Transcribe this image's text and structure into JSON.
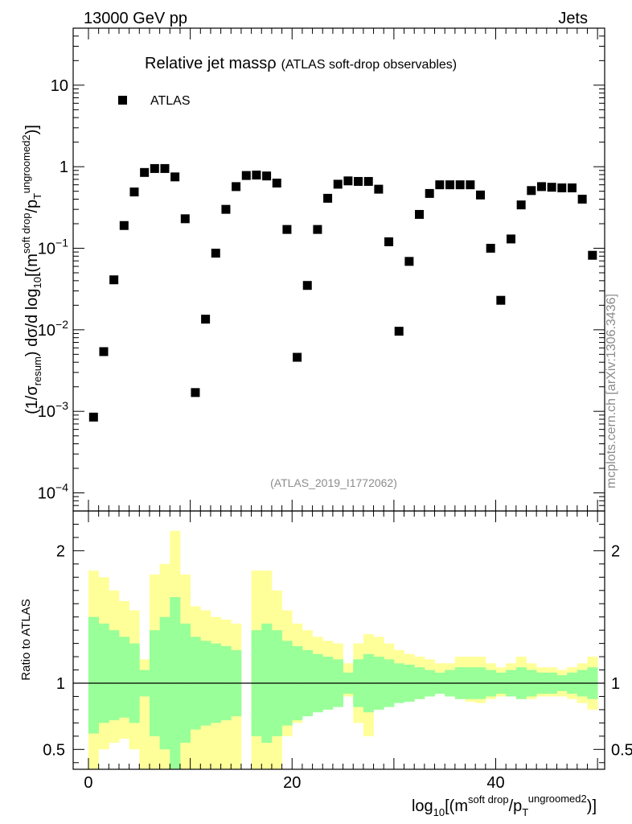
{
  "header": {
    "left": "13000 GeV pp",
    "right": "Jets",
    "watermark": "mcplots.cern.ch [arXiv:1306.3436]",
    "analysis": "(ATLAS_2019_I1772062)"
  },
  "chart_data": [
    {
      "type": "scatter",
      "title_main": "Relative jet mass",
      "title_rho": "ρ",
      "title_sub": "(ATLAS soft-drop observables)",
      "ylabel": {
        "p1": "(1/σ",
        "s1": "resum",
        "p2": ") dσ/d log",
        "s2": "10",
        "p3": "[(m",
        "s3": "soft drop",
        "p4": "/p",
        "s4": "T",
        "s5": "ungroomed",
        "s6": "2",
        "p5": ")",
        "p6": "]"
      },
      "yscale": "log",
      "ylim": [
        6e-05,
        50
      ],
      "yticks": [
        {
          "v": 0.0001,
          "m": "10",
          "e": "−4"
        },
        {
          "v": 0.001,
          "m": "10",
          "e": "−3"
        },
        {
          "v": 0.01,
          "m": "10",
          "e": "−2"
        },
        {
          "v": 0.1,
          "m": "10",
          "e": "−1"
        },
        {
          "v": 1,
          "m": "1",
          "e": ""
        },
        {
          "v": 10,
          "m": "10",
          "e": ""
        }
      ],
      "xlim": [
        -1.5,
        50.7
      ],
      "legend": {
        "label": "ATLAS",
        "position": "top-left"
      },
      "series": [
        {
          "name": "ATLAS",
          "x": [
            0.5,
            1.5,
            2.5,
            3.5,
            4.5,
            5.5,
            6.5,
            7.5,
            8.5,
            9.5,
            10.5,
            11.5,
            12.5,
            13.5,
            14.5,
            15.5,
            16.5,
            17.5,
            18.5,
            19.5,
            20.5,
            21.5,
            22.5,
            23.5,
            24.5,
            25.5,
            26.5,
            27.5,
            28.5,
            29.5,
            30.5,
            31.5,
            32.5,
            33.5,
            34.5,
            35.5,
            36.5,
            37.5,
            38.5,
            39.5,
            40.5,
            41.5,
            42.5,
            43.5,
            44.5,
            45.5,
            46.5,
            47.5,
            48.5,
            49.5
          ],
          "y": [
            0.00085,
            0.0054,
            0.041,
            0.19,
            0.49,
            0.85,
            0.95,
            0.95,
            0.75,
            0.23,
            0.0017,
            0.0135,
            0.087,
            0.3,
            0.57,
            0.78,
            0.79,
            0.77,
            0.63,
            0.17,
            0.0046,
            0.035,
            0.17,
            0.41,
            0.61,
            0.67,
            0.66,
            0.66,
            0.53,
            0.12,
            0.0096,
            0.069,
            0.26,
            0.47,
            0.6,
            0.6,
            0.6,
            0.6,
            0.45,
            0.1,
            0.023,
            0.13,
            0.34,
            0.51,
            0.57,
            0.56,
            0.55,
            0.55,
            0.4,
            0.082
          ]
        }
      ]
    },
    {
      "type": "area",
      "ylabel": "Ratio to ATLAS",
      "xlabel": {
        "p1": "log",
        "s1": "10",
        "p2": "[(m",
        "s2": "soft drop",
        "p3": "/p",
        "s3": "T",
        "s4": "ungroomed",
        "s5": "2",
        "p4": ")",
        "p5": "]"
      },
      "ylim": [
        0.35,
        2.3
      ],
      "xlim": [
        -1.5,
        50.7
      ],
      "yticks": [
        {
          "v": 0.5,
          "label": "0.5"
        },
        {
          "v": 1,
          "label": "1"
        },
        {
          "v": 2,
          "label": "2"
        }
      ],
      "xticks": [
        {
          "v": 0,
          "label": "0"
        },
        {
          "v": 20,
          "label": "20"
        },
        {
          "v": 40,
          "label": "40"
        }
      ],
      "reference_line": 1,
      "bands": {
        "bin_edges": [
          0,
          1,
          2,
          3,
          4,
          5,
          6,
          7,
          8,
          9,
          10,
          11,
          12,
          13,
          14,
          15,
          16,
          17,
          18,
          19,
          20,
          21,
          22,
          23,
          24,
          25,
          26,
          27,
          28,
          29,
          30,
          31,
          32,
          33,
          34,
          35,
          36,
          37,
          38,
          39,
          40,
          41,
          42,
          43,
          44,
          45,
          46,
          47,
          48,
          49,
          50
        ],
        "yellow_hi": [
          1.85,
          1.8,
          1.7,
          1.62,
          1.55,
          1.18,
          1.82,
          1.9,
          2.15,
          1.82,
          1.58,
          1.55,
          1.5,
          1.48,
          1.45,
          0,
          1.85,
          1.85,
          1.7,
          1.55,
          1.45,
          1.4,
          1.35,
          1.32,
          1.3,
          1.15,
          1.3,
          1.37,
          1.35,
          1.3,
          1.25,
          1.22,
          1.2,
          1.18,
          1.15,
          1.15,
          1.2,
          1.2,
          1.2,
          1.15,
          1.12,
          1.15,
          1.2,
          1.15,
          1.12,
          1.12,
          1.1,
          1.12,
          1.15,
          1.2
        ],
        "yellow_lo": [
          0.35,
          0.5,
          0.55,
          0.58,
          0.5,
          0,
          0,
          0,
          0,
          0,
          0,
          0,
          0,
          0,
          0,
          0,
          0,
          0,
          0,
          0.6,
          0.7,
          0.8,
          0.85,
          0.88,
          0.9,
          0.9,
          0.7,
          0.6,
          0.8,
          0.85,
          0.88,
          0.86,
          0.88,
          0.9,
          0.92,
          0.9,
          0.88,
          0.86,
          0.85,
          0.88,
          0.9,
          0.9,
          0.88,
          0.88,
          0.9,
          0.9,
          0.9,
          0.88,
          0.85,
          0.8
        ],
        "green_hi": [
          1.5,
          1.45,
          1.4,
          1.35,
          1.3,
          1.1,
          1.4,
          1.5,
          1.65,
          1.45,
          1.35,
          1.32,
          1.3,
          1.28,
          1.25,
          0,
          1.4,
          1.45,
          1.4,
          1.32,
          1.28,
          1.25,
          1.22,
          1.2,
          1.18,
          1.08,
          1.18,
          1.22,
          1.2,
          1.18,
          1.15,
          1.14,
          1.12,
          1.1,
          1.08,
          1.1,
          1.12,
          1.12,
          1.12,
          1.1,
          1.08,
          1.1,
          1.12,
          1.1,
          1.08,
          1.08,
          1.06,
          1.08,
          1.1,
          1.12
        ],
        "green_lo": [
          0.62,
          0.7,
          0.72,
          0.74,
          0.7,
          0.9,
          0.6,
          0.5,
          0.35,
          0.55,
          0.65,
          0.68,
          0.7,
          0.72,
          0.75,
          0,
          0.6,
          0.55,
          0.6,
          0.68,
          0.72,
          0.75,
          0.78,
          0.8,
          0.82,
          0.92,
          0.82,
          0.78,
          0.8,
          0.82,
          0.85,
          0.86,
          0.88,
          0.9,
          0.92,
          0.9,
          0.88,
          0.88,
          0.88,
          0.9,
          0.92,
          0.9,
          0.88,
          0.9,
          0.92,
          0.92,
          0.94,
          0.92,
          0.9,
          0.88
        ]
      }
    }
  ]
}
